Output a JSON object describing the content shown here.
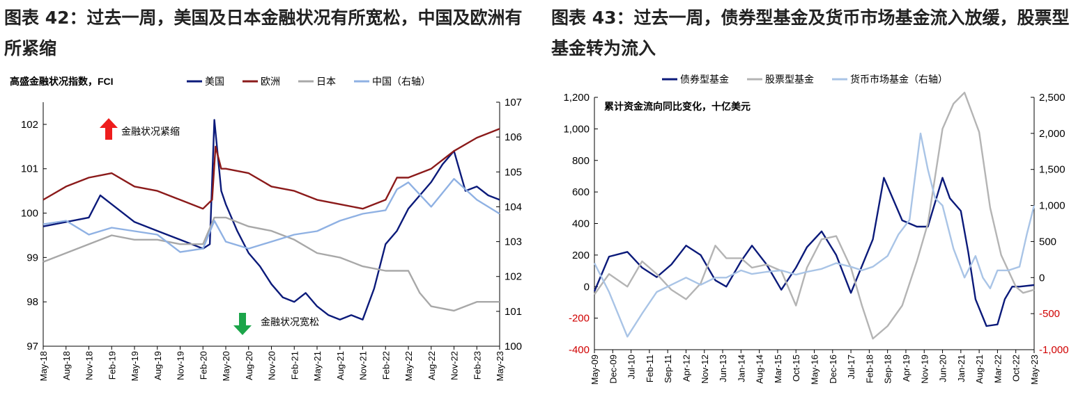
{
  "left": {
    "title": "图表 42：过去一周，美国及日本金融状况有所宽松，中国及欧洲有所紧缩",
    "chart_data": {
      "type": "line",
      "title": "",
      "subtitle": "高盛金融状况指数，FCI",
      "legend": [
        "美国",
        "欧洲",
        "日本",
        "中国（右轴）"
      ],
      "legend_placement": "top",
      "y_left": {
        "ylim": [
          97,
          102.5
        ],
        "ticks": [
          "97",
          "98",
          "99",
          "100",
          "101",
          "102"
        ]
      },
      "y_right": {
        "ylim": [
          100,
          107
        ],
        "ticks": [
          "100",
          "101",
          "102",
          "103",
          "104",
          "105",
          "106",
          "107"
        ]
      },
      "x_ticks": [
        "May-18",
        "Aug-18",
        "Nov-18",
        "Feb-19",
        "May-19",
        "Aug-19",
        "Nov-19",
        "Feb-20",
        "May-20",
        "Aug-20",
        "Nov-20",
        "Feb-21",
        "May-21",
        "Aug-21",
        "Nov-21",
        "Feb-22",
        "May-22",
        "Aug-22",
        "Nov-22",
        "Feb-23",
        "May-23"
      ],
      "annotations": {
        "tighten": "金融状况紧缩",
        "ease": "金融状况宽松"
      },
      "grid": false,
      "series": [
        {
          "name": "美国",
          "color": "#0b1a7a",
          "axis": "left",
          "x": [
            0,
            1,
            2,
            2.5,
            3,
            4,
            5,
            6,
            7,
            7.3,
            7.5,
            7.8,
            8,
            8.5,
            9,
            9.5,
            10,
            10.5,
            11,
            11.5,
            12,
            12.5,
            13,
            13.5,
            14,
            14.5,
            15,
            15.5,
            16,
            16.5,
            17,
            17.5,
            18,
            18.5,
            19,
            19.5,
            20
          ],
          "values": [
            99.7,
            99.8,
            99.9,
            100.4,
            100.2,
            99.8,
            99.6,
            99.4,
            99.2,
            99.3,
            102.1,
            100.5,
            100.2,
            99.6,
            99.1,
            98.8,
            98.4,
            98.1,
            98.0,
            98.2,
            97.9,
            97.7,
            97.6,
            97.7,
            97.6,
            98.3,
            99.3,
            99.6,
            100.1,
            100.4,
            100.7,
            101.1,
            101.4,
            100.5,
            100.6,
            100.4,
            100.3
          ]
        },
        {
          "name": "欧洲",
          "color": "#8b1a1a",
          "axis": "left",
          "x": [
            0,
            1,
            2,
            3,
            4,
            5,
            6,
            7,
            7.4,
            7.55,
            7.8,
            8,
            9,
            10,
            11,
            12,
            13,
            14,
            15,
            15.5,
            16,
            17,
            18,
            19,
            20
          ],
          "values": [
            100.3,
            100.6,
            100.8,
            100.9,
            100.6,
            100.5,
            100.3,
            100.1,
            100.3,
            101.5,
            101.0,
            101.0,
            100.9,
            100.6,
            100.5,
            100.3,
            100.2,
            100.1,
            100.3,
            100.8,
            100.8,
            101.0,
            101.4,
            101.7,
            101.9
          ]
        },
        {
          "name": "日本",
          "color": "#a8a8a8",
          "axis": "left",
          "x": [
            0,
            1,
            2,
            3,
            4,
            5,
            6,
            7,
            7.5,
            8,
            9,
            10,
            11,
            12,
            13,
            14,
            15,
            16,
            16.5,
            17,
            18,
            19,
            20
          ],
          "values": [
            98.9,
            99.1,
            99.3,
            99.5,
            99.4,
            99.4,
            99.3,
            99.3,
            99.9,
            99.9,
            99.7,
            99.6,
            99.4,
            99.1,
            99.0,
            98.8,
            98.7,
            98.7,
            98.2,
            97.9,
            97.8,
            98.0,
            98.0
          ]
        },
        {
          "name": "中国（右轴）",
          "color": "#8fb1e3",
          "axis": "right",
          "x": [
            0,
            1,
            2,
            3,
            4,
            5,
            6,
            7,
            7.5,
            8,
            9,
            10,
            11,
            12,
            13,
            14,
            15,
            15.5,
            16,
            17,
            18,
            19,
            20
          ],
          "values": [
            103.5,
            103.6,
            103.2,
            103.4,
            103.3,
            103.2,
            102.7,
            102.8,
            103.6,
            103.0,
            102.8,
            103.0,
            103.2,
            103.3,
            103.6,
            103.8,
            103.9,
            104.5,
            104.7,
            104.0,
            104.8,
            104.2,
            103.8
          ]
        }
      ]
    }
  },
  "right": {
    "title": "图表 43：过去一周，债券型基金及货币市场基金流入放缓，股票型基金转为流入",
    "chart_data": {
      "type": "line",
      "title": "",
      "subtitle": "累计资金流向同比变化，十亿美元",
      "legend": [
        "债券型基金",
        "股票型基金",
        "货币市场基金（右轴）"
      ],
      "legend_placement": "top",
      "y_left": {
        "ylim": [
          -400,
          1200
        ],
        "ticks": [
          "-400",
          "-200",
          "0",
          "200",
          "400",
          "600",
          "800",
          "1,000",
          "1,200"
        ]
      },
      "y_right": {
        "ylim": [
          -1000,
          2500
        ],
        "ticks": [
          "-1,000",
          "-500",
          "0",
          "500",
          "1,000",
          "1,500",
          "2,000",
          "2,500"
        ]
      },
      "x_ticks": [
        "May-09",
        "Dec-09",
        "Jul-10",
        "Feb-11",
        "Sep-11",
        "Apr-12",
        "Nov-12",
        "Jun-13",
        "Jan-14",
        "Aug-14",
        "Mar-15",
        "Oct-15",
        "May-16",
        "Dec-16",
        "Jul-17",
        "Feb-18",
        "Sep-18",
        "Apr-19",
        "Nov-19",
        "Jun-20",
        "Jan-21",
        "Aug-21",
        "Mar-22",
        "Oct-22",
        "May-23"
      ],
      "grid": false,
      "series": [
        {
          "name": "债券型基金",
          "color": "#0b1a7a",
          "axis": "left",
          "x": [
            0,
            0.8,
            1.8,
            2.6,
            3.4,
            4.2,
            5.0,
            5.8,
            6.6,
            7.2,
            8.0,
            8.6,
            9.4,
            10.2,
            11.0,
            11.6,
            12.4,
            13.2,
            14.0,
            15.2,
            15.8,
            16.8,
            17.6,
            18.2,
            19.0,
            19.4,
            20.0,
            20.4,
            20.8,
            21.4,
            22.0,
            22.4,
            22.8,
            23.2,
            24.0
          ],
          "values": [
            -30,
            190,
            220,
            120,
            60,
            140,
            260,
            200,
            40,
            0,
            160,
            260,
            140,
            -20,
            120,
            250,
            350,
            200,
            -40,
            300,
            690,
            420,
            380,
            380,
            690,
            560,
            480,
            220,
            -80,
            -250,
            -240,
            -80,
            0,
            0,
            10
          ]
        },
        {
          "name": "股票型基金",
          "color": "#b4b4b4",
          "axis": "left",
          "x": [
            0,
            0.8,
            1.8,
            2.6,
            3.4,
            4.2,
            5.0,
            5.8,
            6.6,
            7.2,
            8.0,
            8.6,
            9.4,
            10.2,
            11.0,
            11.6,
            12.4,
            13.2,
            14.0,
            14.6,
            15.2,
            16.0,
            16.8,
            17.6,
            18.2,
            19.0,
            19.6,
            20.2,
            21.0,
            21.6,
            22.2,
            23.0,
            23.4,
            24.0
          ],
          "values": [
            -50,
            80,
            0,
            160,
            80,
            -20,
            -80,
            20,
            260,
            180,
            180,
            120,
            140,
            100,
            -120,
            120,
            300,
            320,
            120,
            -120,
            -330,
            -250,
            -120,
            160,
            400,
            1000,
            1160,
            1230,
            980,
            500,
            200,
            0,
            -40,
            -20
          ]
        },
        {
          "name": "货币市场基金（右轴）",
          "color": "#a9c4e6",
          "axis": "right",
          "x": [
            0,
            0.8,
            1.8,
            2.6,
            3.4,
            4.2,
            5.0,
            5.8,
            6.6,
            7.2,
            8.0,
            8.6,
            9.4,
            10.2,
            11.0,
            11.6,
            12.4,
            13.2,
            14.0,
            14.6,
            15.2,
            16.0,
            16.6,
            17.2,
            17.8,
            18.2,
            18.6,
            19.0,
            19.6,
            20.2,
            20.8,
            21.2,
            21.6,
            22.0,
            22.6,
            23.2,
            23.6,
            24.0
          ],
          "values": [
            200,
            -200,
            -820,
            -500,
            -200,
            -100,
            0,
            -100,
            0,
            0,
            100,
            50,
            80,
            100,
            40,
            80,
            120,
            200,
            150,
            100,
            150,
            300,
            600,
            800,
            2000,
            1500,
            1100,
            1000,
            400,
            0,
            300,
            0,
            -150,
            100,
            100,
            150,
            600,
            1000
          ]
        }
      ]
    }
  }
}
